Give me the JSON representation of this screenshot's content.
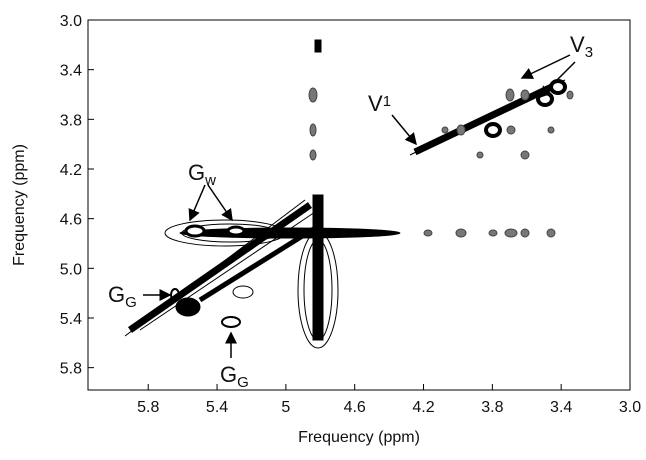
{
  "chart_data": {
    "type": "contour",
    "x_label": "Frequency (ppm)",
    "y_label": "Frequency (ppm)",
    "xlim": [
      6.15,
      3.0
    ],
    "xticks": [
      5.8,
      5.4,
      5.0,
      4.6,
      4.2,
      3.8,
      3.4,
      {
        "value": 3.0,
        "label": "3.0"
      }
    ],
    "ylim": [
      3.0,
      5.98
    ],
    "yticks": [
      {
        "value": 3.0,
        "label": "3.0"
      },
      3.4,
      3.8,
      4.2,
      4.6,
      {
        "value": 5.0,
        "label": "5.0"
      },
      5.4,
      5.8
    ],
    "annotations": [
      {
        "text": "G",
        "subscript": "w"
      },
      {
        "text": "G",
        "subscript": "G"
      },
      {
        "text": "G",
        "subscript": "G"
      },
      {
        "text": "V",
        "subscript": "1"
      },
      {
        "text": "V",
        "subscript": "3"
      }
    ]
  }
}
